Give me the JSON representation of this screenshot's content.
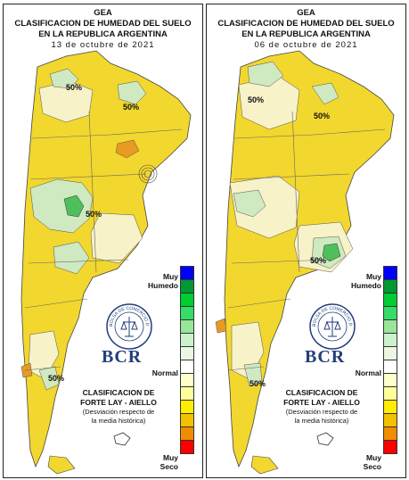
{
  "panels": [
    {
      "title_org": "GEA",
      "title_line1": "CLASIFICACION DE HUMEDAD DEL SUELO",
      "title_line2": "EN LA REPUBLICA ARGENTINA",
      "date": "13 de octubre de 2021",
      "contour_labels": [
        "50%",
        "50%",
        "50%",
        "50%"
      ]
    },
    {
      "title_org": "GEA",
      "title_line1": "CLASIFICACION DE HUMEDAD DEL SUELO",
      "title_line2": "EN LA REPUBLICA ARGENTINA",
      "date": "06 de octubre de 2021",
      "contour_labels": [
        "50%",
        "50%",
        "50%",
        "50%"
      ]
    }
  ],
  "legend": {
    "top_label_line1": "Muy",
    "top_label_line2": "Humedo",
    "middle_label": "Normal",
    "bottom_label_line1": "Muy",
    "bottom_label_line2": "Seco",
    "classes": [
      "#0000ff",
      "#009933",
      "#00cc33",
      "#33dd66",
      "#99e699",
      "#ccf2cc",
      "#ebf7e4",
      "#ffffff",
      "#ffffcc",
      "#ffff99",
      "#ffee00",
      "#f2c200",
      "#f28c00",
      "#ff0000"
    ]
  },
  "classification": {
    "title_line1": "CLASIFICACION DE",
    "title_line2": "FORTE LAY - AIELLO",
    "note_line1": "(Desviación respecto de",
    "note_line2": "la media histórica)"
  },
  "logo": {
    "brand": "BCR",
    "seal_text": "BOLSA DE COMERCIO DE ROSARIO"
  },
  "colors": {
    "land_normal": "#f7f2c8",
    "land_dry": "#f2d72e",
    "land_very_dry": "#e89a22",
    "land_humid": "#cfe9c1",
    "land_very_humid": "#4fbf5c",
    "ocean": "#ffffff",
    "border": "#555555"
  }
}
